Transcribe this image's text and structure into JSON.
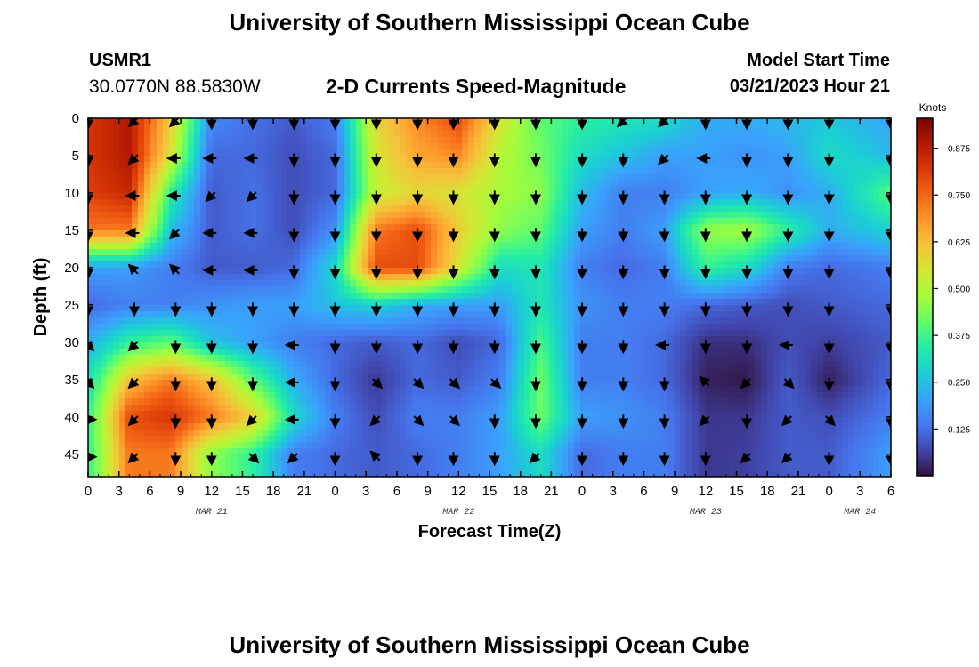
{
  "page": {
    "title_top": "University of Southern Mississippi Ocean Cube",
    "title_bottom": "University of Southern Mississippi Ocean Cube",
    "station_id": "USMR1",
    "station_coords": "30.0770N  88.5830W",
    "subtitle": "2-D Currents Speed-Magnitude",
    "start_label": "Model Start Time",
    "start_value": "03/21/2023 Hour 21"
  },
  "chart_data": {
    "type": "heatmap",
    "title": "2-D Currents Speed-Magnitude",
    "xlabel": "Forecast Time(Z)",
    "ylabel": "Depth (ft)",
    "colorbar_label": "Knots",
    "xlim": [
      0,
      78
    ],
    "ylim": [
      48,
      0
    ],
    "colorbar_range": [
      0,
      0.95
    ],
    "x_ticks": [
      {
        "x": 0,
        "label": "0"
      },
      {
        "x": 3,
        "label": "3"
      },
      {
        "x": 6,
        "label": "6"
      },
      {
        "x": 9,
        "label": "9"
      },
      {
        "x": 12,
        "label": "12"
      },
      {
        "x": 15,
        "label": "15"
      },
      {
        "x": 18,
        "label": "18"
      },
      {
        "x": 21,
        "label": "21"
      },
      {
        "x": 24,
        "label": "0"
      },
      {
        "x": 27,
        "label": "3"
      },
      {
        "x": 30,
        "label": "6"
      },
      {
        "x": 33,
        "label": "9"
      },
      {
        "x": 36,
        "label": "12"
      },
      {
        "x": 39,
        "label": "15"
      },
      {
        "x": 42,
        "label": "18"
      },
      {
        "x": 45,
        "label": "21"
      },
      {
        "x": 48,
        "label": "0"
      },
      {
        "x": 51,
        "label": "3"
      },
      {
        "x": 54,
        "label": "6"
      },
      {
        "x": 57,
        "label": "9"
      },
      {
        "x": 60,
        "label": "12"
      },
      {
        "x": 63,
        "label": "15"
      },
      {
        "x": 66,
        "label": "18"
      },
      {
        "x": 69,
        "label": "21"
      },
      {
        "x": 72,
        "label": "0"
      },
      {
        "x": 75,
        "label": "3"
      },
      {
        "x": 78,
        "label": "6"
      }
    ],
    "date_labels": [
      {
        "x": 12,
        "label": "MAR 21"
      },
      {
        "x": 36,
        "label": "MAR 22"
      },
      {
        "x": 60,
        "label": "MAR 23"
      },
      {
        "x": 75,
        "label": "MAR 24"
      }
    ],
    "y_ticks": [
      0,
      5,
      10,
      15,
      20,
      25,
      30,
      35,
      40,
      45
    ],
    "colorbar_ticks": [
      0.125,
      0.25,
      0.375,
      0.5,
      0.625,
      0.75,
      0.875
    ],
    "colorbar_tick_labels": [
      "0.125",
      "0.250",
      "0.375",
      "0.500",
      "0.625",
      "0.750",
      "0.875"
    ],
    "depths": [
      0,
      5,
      10,
      15,
      20,
      25,
      30,
      35,
      40,
      45
    ],
    "times": [
      0,
      4,
      8,
      12,
      16,
      20,
      24,
      28,
      32,
      36,
      40,
      44,
      48,
      52,
      56,
      60,
      64,
      68,
      72,
      78
    ],
    "speed_knots": [
      [
        0.82,
        0.88,
        0.6,
        0.17,
        0.13,
        0.1,
        0.15,
        0.58,
        0.7,
        0.78,
        0.55,
        0.4,
        0.35,
        0.32,
        0.3,
        0.22,
        0.22,
        0.24,
        0.26,
        0.2
      ],
      [
        0.82,
        0.88,
        0.55,
        0.12,
        0.12,
        0.08,
        0.12,
        0.55,
        0.66,
        0.7,
        0.5,
        0.42,
        0.3,
        0.25,
        0.2,
        0.2,
        0.18,
        0.2,
        0.3,
        0.24
      ],
      [
        0.8,
        0.85,
        0.35,
        0.1,
        0.13,
        0.08,
        0.12,
        0.52,
        0.58,
        0.55,
        0.48,
        0.45,
        0.24,
        0.15,
        0.15,
        0.2,
        0.22,
        0.18,
        0.22,
        0.4
      ],
      [
        0.72,
        0.72,
        0.25,
        0.1,
        0.13,
        0.08,
        0.18,
        0.72,
        0.78,
        0.6,
        0.45,
        0.4,
        0.2,
        0.15,
        0.2,
        0.46,
        0.48,
        0.35,
        0.22,
        0.28
      ],
      [
        0.2,
        0.2,
        0.15,
        0.1,
        0.1,
        0.12,
        0.3,
        0.78,
        0.78,
        0.55,
        0.3,
        0.32,
        0.15,
        0.12,
        0.15,
        0.36,
        0.3,
        0.15,
        0.12,
        0.15
      ],
      [
        0.12,
        0.15,
        0.15,
        0.18,
        0.2,
        0.2,
        0.25,
        0.28,
        0.22,
        0.2,
        0.2,
        0.32,
        0.18,
        0.15,
        0.15,
        0.12,
        0.1,
        0.08,
        0.1,
        0.12
      ],
      [
        0.22,
        0.35,
        0.4,
        0.25,
        0.2,
        0.15,
        0.12,
        0.1,
        0.12,
        0.08,
        0.12,
        0.38,
        0.15,
        0.15,
        0.12,
        0.04,
        0.04,
        0.08,
        0.06,
        0.1
      ],
      [
        0.3,
        0.62,
        0.72,
        0.62,
        0.4,
        0.22,
        0.12,
        0.05,
        0.12,
        0.1,
        0.15,
        0.42,
        0.15,
        0.15,
        0.12,
        0.02,
        0.01,
        0.1,
        0.02,
        0.12
      ],
      [
        0.35,
        0.78,
        0.82,
        0.72,
        0.6,
        0.3,
        0.15,
        0.08,
        0.15,
        0.15,
        0.2,
        0.42,
        0.2,
        0.18,
        0.15,
        0.05,
        0.05,
        0.1,
        0.08,
        0.15
      ],
      [
        0.35,
        0.72,
        0.72,
        0.45,
        0.35,
        0.15,
        0.12,
        0.1,
        0.12,
        0.15,
        0.2,
        0.3,
        0.12,
        0.15,
        0.15,
        0.05,
        0.06,
        0.1,
        0.1,
        0.2
      ]
    ],
    "vector_times": [
      0,
      4.5,
      8.5,
      12,
      16,
      20,
      24,
      28,
      32,
      35.5,
      39.5,
      43.5,
      48,
      52,
      56,
      60,
      64,
      68,
      72,
      78
    ],
    "vector_dirs_deg": [
      [
        0,
        315,
        315,
        0,
        0,
        0,
        0,
        0,
        0,
        0,
        0,
        0,
        0,
        315,
        315,
        0,
        0,
        0,
        0,
        0
      ],
      [
        0,
        315,
        270,
        270,
        270,
        0,
        0,
        0,
        0,
        0,
        0,
        0,
        0,
        0,
        315,
        270,
        0,
        0,
        0,
        0
      ],
      [
        0,
        270,
        270,
        315,
        315,
        0,
        0,
        0,
        0,
        0,
        0,
        0,
        0,
        0,
        0,
        0,
        0,
        0,
        0,
        0
      ],
      [
        0,
        270,
        315,
        270,
        270,
        0,
        0,
        0,
        0,
        0,
        0,
        0,
        0,
        0,
        0,
        0,
        0,
        0,
        0,
        0
      ],
      [
        0,
        225,
        225,
        270,
        270,
        0,
        0,
        0,
        0,
        0,
        0,
        0,
        0,
        0,
        0,
        0,
        0,
        0,
        0,
        0
      ],
      [
        0,
        0,
        0,
        0,
        0,
        0,
        0,
        0,
        0,
        0,
        0,
        0,
        0,
        0,
        0,
        0,
        0,
        0,
        0,
        0
      ],
      [
        45,
        315,
        0,
        0,
        0,
        270,
        0,
        0,
        0,
        0,
        0,
        0,
        0,
        0,
        270,
        0,
        0,
        270,
        0,
        0
      ],
      [
        45,
        315,
        0,
        0,
        0,
        270,
        0,
        45,
        45,
        45,
        45,
        0,
        0,
        0,
        0,
        225,
        315,
        45,
        0,
        0
      ],
      [
        90,
        315,
        0,
        0,
        315,
        270,
        0,
        315,
        45,
        45,
        0,
        0,
        0,
        0,
        0,
        315,
        0,
        315,
        45,
        0
      ],
      [
        90,
        315,
        0,
        0,
        45,
        315,
        0,
        225,
        0,
        0,
        0,
        315,
        0,
        0,
        0,
        0,
        315,
        315,
        0,
        0
      ]
    ]
  }
}
